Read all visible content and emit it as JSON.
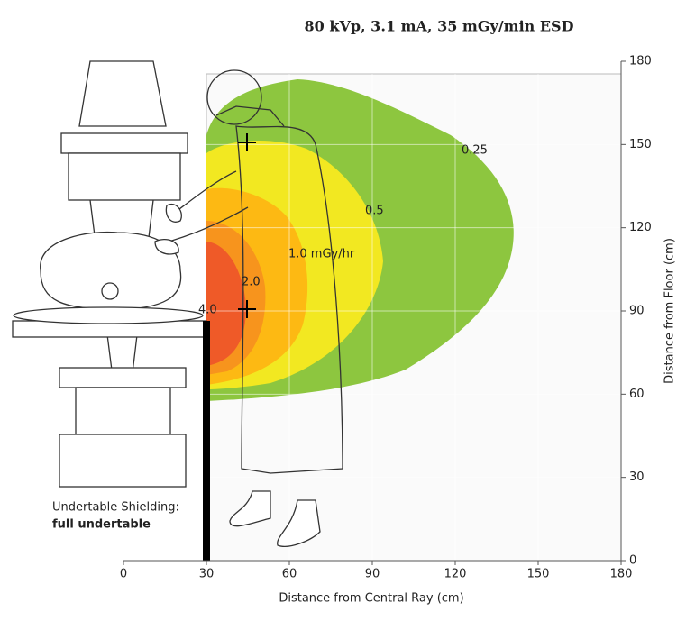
{
  "chart_data": {
    "type": "contour",
    "title": "80 kVp, 3.1 mA, 35 mGy/min ESD",
    "x_label": "Distance from Central Ray (cm)",
    "y_label": "Distance from Floor (cm)",
    "xlim": [
      0,
      180
    ],
    "xticks": [
      0,
      30,
      60,
      90,
      120,
      150,
      180
    ],
    "ylim": [
      0,
      180
    ],
    "yticks": [
      0,
      30,
      60,
      90,
      120,
      150,
      180
    ],
    "contours": [
      {
        "label": "0.25",
        "color": "#8dc63f"
      },
      {
        "label": "0.5",
        "color": "#f2e821"
      },
      {
        "label": "1.0 mGy/hr",
        "color": "#fdb913"
      },
      {
        "label": "2.0",
        "color": "#f7941d"
      },
      {
        "label": "4.0",
        "color": "#ef5a28"
      }
    ],
    "shielding_label": "Undertable Shielding:",
    "shielding_value": "full undertable"
  }
}
